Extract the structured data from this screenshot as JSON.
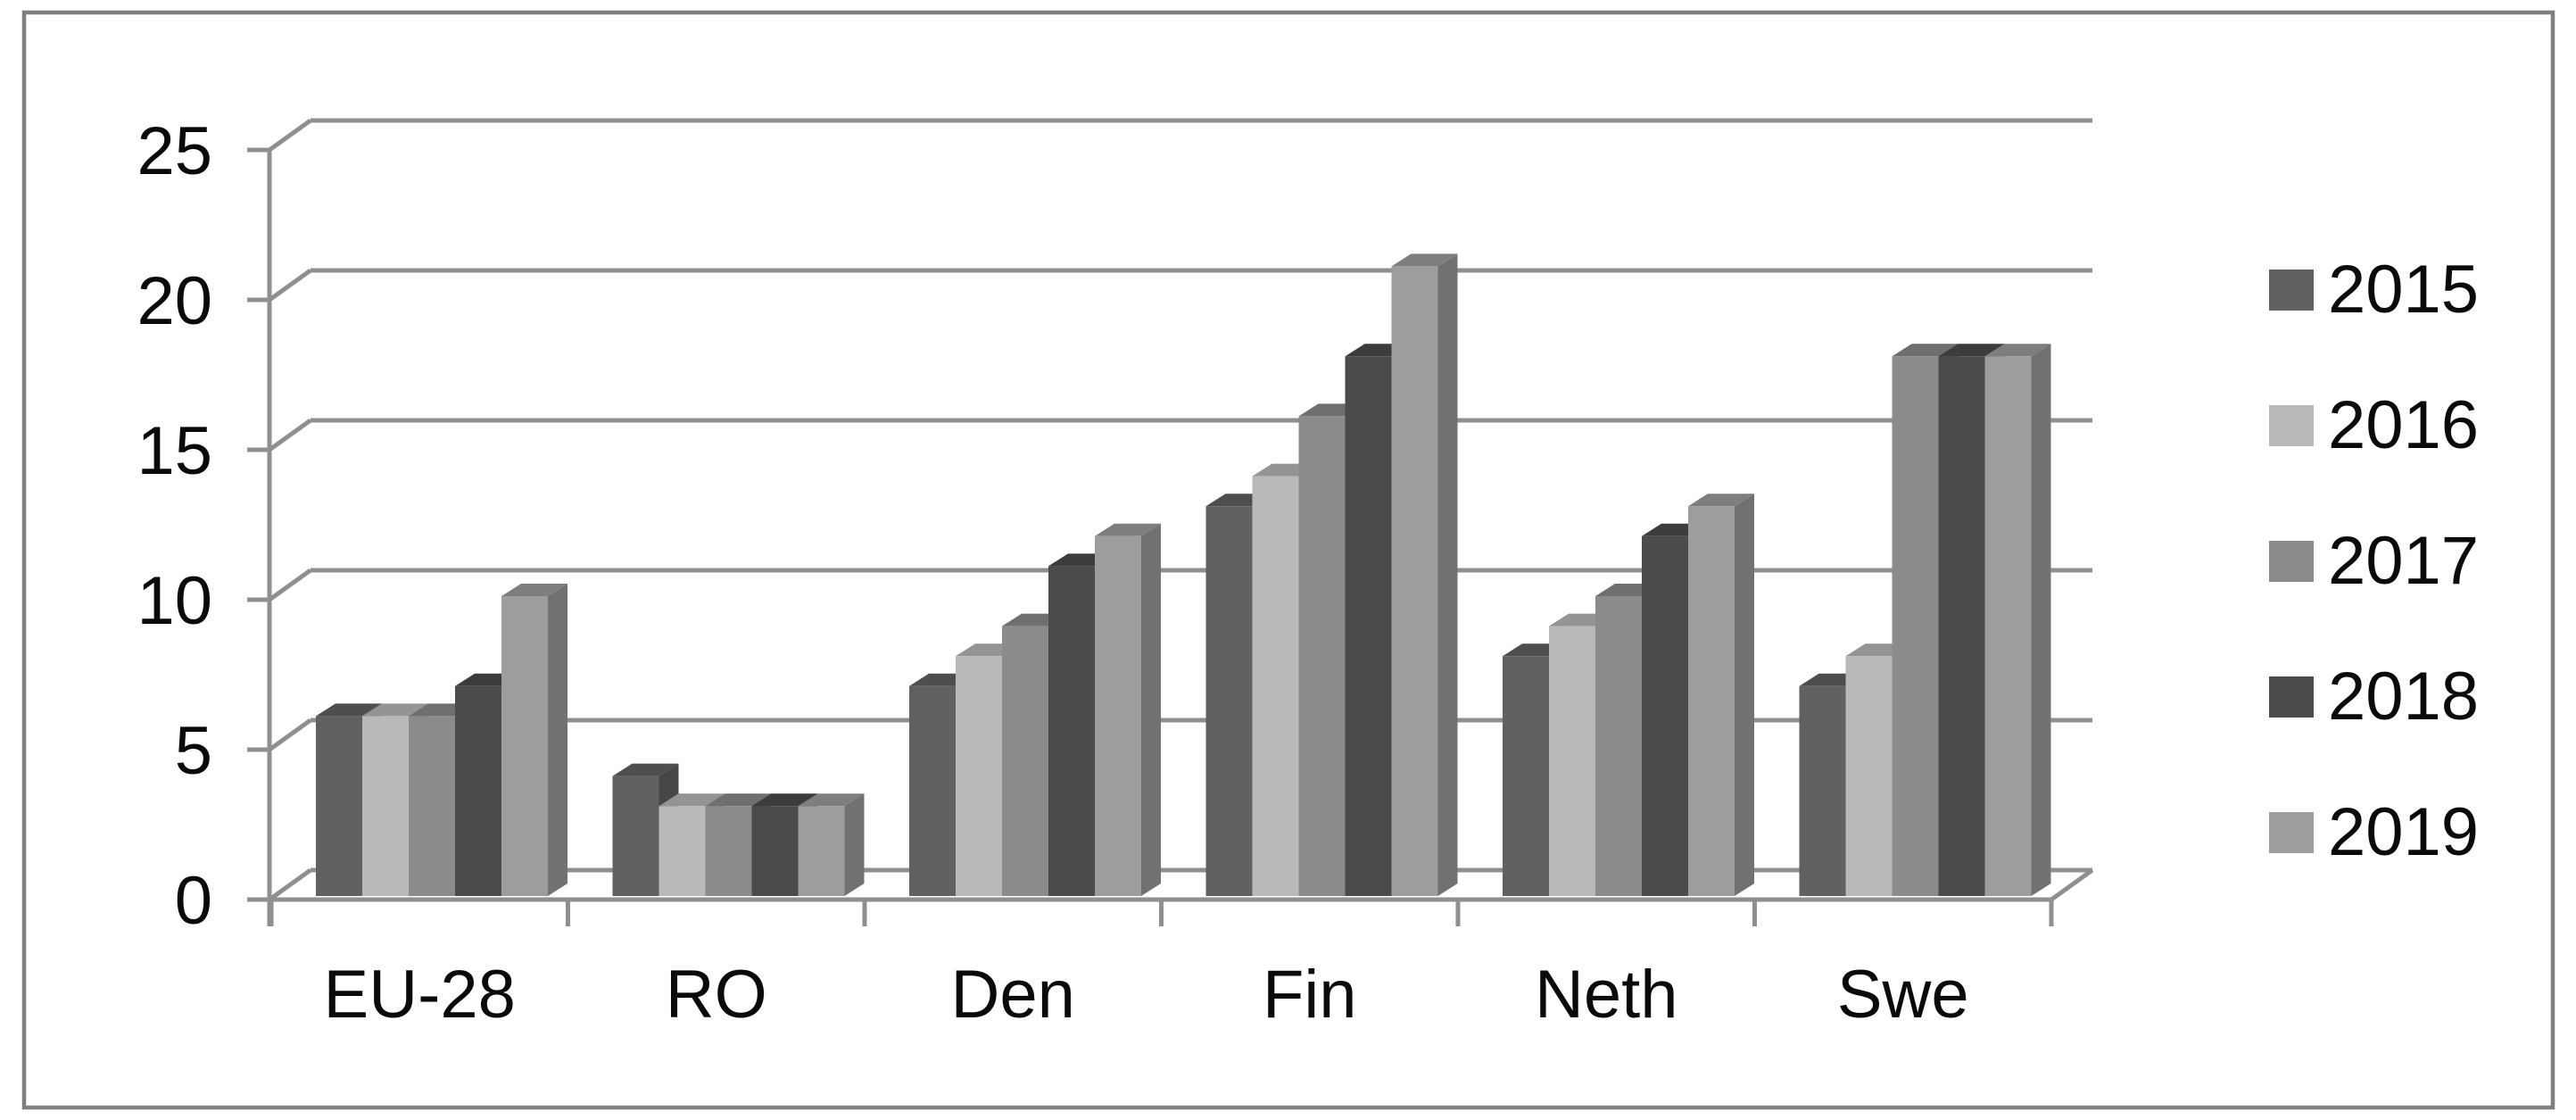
{
  "figure": {
    "background_color": "#ffffff",
    "border_color": "#7f7f7f",
    "gridline_color": "#8f8f8f",
    "text_color": "#0a0a0a"
  },
  "chart_data": {
    "type": "bar",
    "style": "3d-clustered-column-grayscale",
    "title": "",
    "xlabel": "",
    "ylabel": "",
    "categories": [
      "EU-28",
      "RO",
      "Den",
      "Fin",
      "Neth",
      "Swe"
    ],
    "series": [
      {
        "name": "2015",
        "color": "#616161",
        "values": [
          6,
          4,
          7,
          13,
          8,
          7
        ]
      },
      {
        "name": "2016",
        "color": "#b9b9b9",
        "values": [
          6,
          3,
          8,
          14,
          9,
          8
        ]
      },
      {
        "name": "2017",
        "color": "#8b8b8b",
        "values": [
          6,
          3,
          9,
          16,
          10,
          18
        ]
      },
      {
        "name": "2018",
        "color": "#4b4b4b",
        "values": [
          7,
          3,
          11,
          18,
          12,
          18
        ]
      },
      {
        "name": "2019",
        "color": "#9d9d9d",
        "values": [
          10,
          3,
          12,
          21,
          13,
          18
        ]
      }
    ],
    "y_axis": {
      "min": 0,
      "max": 25,
      "step": 5,
      "tick_labels": [
        "0",
        "5",
        "10",
        "15",
        "20",
        "25"
      ]
    },
    "legend": {
      "position": "right",
      "entries": [
        "2015",
        "2016",
        "2017",
        "2018",
        "2019"
      ]
    },
    "grid": true
  }
}
